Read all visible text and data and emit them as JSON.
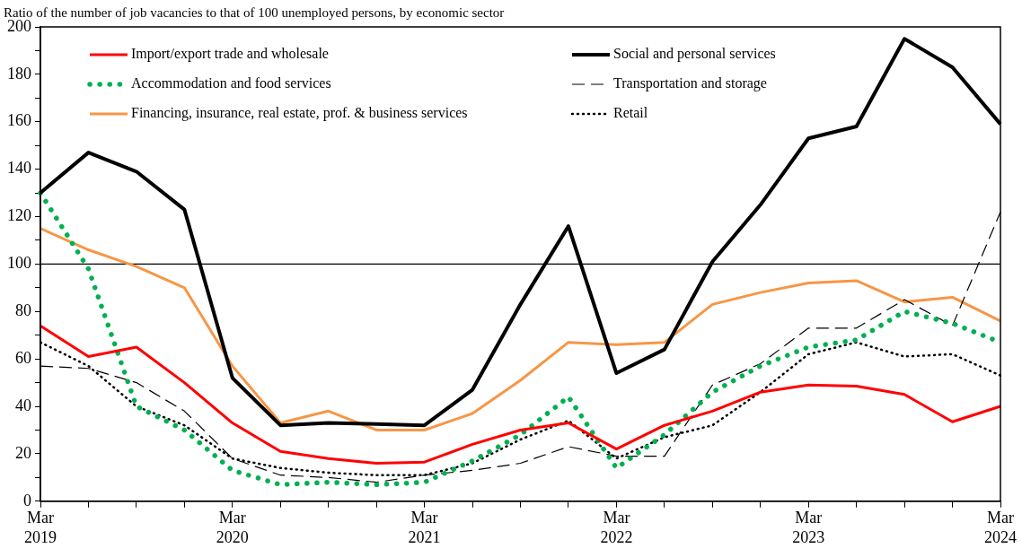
{
  "chart_data": {
    "type": "line",
    "title": "Ratio of the number of job vacancies to that of 100 unemployed persons, by economic sector",
    "categories": [
      "Mar 2019",
      null,
      null,
      null,
      "Mar 2020",
      null,
      null,
      null,
      "Mar 2021",
      null,
      null,
      null,
      "Mar 2022",
      null,
      null,
      null,
      "Mar 2023",
      null,
      null,
      null,
      "Mar 2024"
    ],
    "series": [
      {
        "name": "Import/export trade and wholesale",
        "color": "#ff0000",
        "line_style": "solid",
        "values": [
          74,
          61,
          65,
          50,
          33,
          21,
          18,
          16,
          16.5,
          24,
          30,
          33,
          22,
          32,
          38,
          46,
          49,
          48.5,
          45,
          33.5,
          40
        ]
      },
      {
        "name": "Social and personal services",
        "color": "#000000",
        "line_style": "solid",
        "values": [
          130,
          147,
          139,
          123,
          52,
          32,
          33,
          32.5,
          32,
          47,
          83,
          116,
          54,
          64,
          101,
          125,
          153,
          158,
          195,
          183,
          159
        ]
      },
      {
        "name": "Accommodation and food services",
        "color": "#00b050",
        "line_style": "dotted",
        "values": [
          130,
          98,
          40,
          30,
          13,
          7,
          8,
          7,
          8,
          17,
          28,
          44,
          14,
          28,
          46,
          57,
          65,
          68,
          80,
          75,
          67
        ]
      },
      {
        "name": "Transportation and storage",
        "color": "#000000",
        "line_style": "dashed",
        "values": [
          57,
          56,
          50,
          38,
          18,
          11,
          10,
          8,
          11,
          13,
          16,
          23,
          19,
          19,
          49,
          58,
          73,
          73,
          85,
          74,
          122
        ]
      },
      {
        "name": "Financing, insurance, real estate, prof. & business services",
        "color": "#f79646",
        "line_style": "solid",
        "values": [
          115,
          106,
          99,
          90,
          57,
          33,
          38,
          30,
          30,
          37,
          51,
          67,
          66,
          67,
          83,
          88,
          92,
          93,
          84,
          86,
          76
        ]
      },
      {
        "name": "Retail",
        "color": "#000000",
        "line_style": "dotted",
        "values": [
          67,
          57,
          40,
          32,
          18,
          14,
          12,
          11,
          11,
          16,
          26,
          34,
          18,
          27,
          32,
          46,
          62,
          67,
          61,
          62,
          53
        ]
      }
    ],
    "ylim": [
      0,
      200
    ],
    "yticks": [
      0,
      {
        "value": 10,
        "label": null
      },
      20,
      {
        "value": 30,
        "label": null
      },
      40,
      {
        "value": 50,
        "label": null
      },
      60,
      {
        "value": 70,
        "label": null
      },
      80,
      {
        "value": 90,
        "label": null
      },
      100,
      {
        "value": 110,
        "label": null
      },
      120,
      {
        "value": 130,
        "label": null
      },
      140,
      {
        "value": 150,
        "label": null
      },
      160,
      {
        "value": 170,
        "label": null
      },
      180,
      {
        "value": 190,
        "label": null
      },
      200
    ],
    "ref_lines": [
      {
        "axis": "y",
        "value": 100,
        "color": "#000000"
      }
    ],
    "grid": false,
    "legend": "top",
    "marker": "none"
  }
}
